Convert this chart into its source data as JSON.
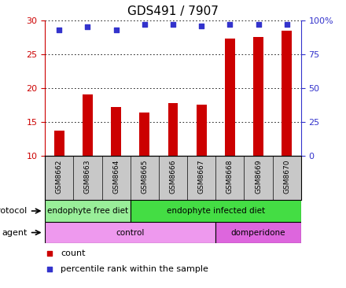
{
  "title": "GDS491 / 7907",
  "samples": [
    "GSM8662",
    "GSM8663",
    "GSM8664",
    "GSM8665",
    "GSM8666",
    "GSM8667",
    "GSM8668",
    "GSM8669",
    "GSM8670"
  ],
  "counts": [
    13.7,
    19.0,
    17.2,
    16.4,
    17.7,
    17.5,
    27.3,
    27.5,
    28.5
  ],
  "percentiles": [
    93,
    95,
    93,
    97,
    97,
    96,
    97,
    97,
    97
  ],
  "ylim_left": [
    10,
    30
  ],
  "ylim_right": [
    0,
    100
  ],
  "yticks_left": [
    10,
    15,
    20,
    25,
    30
  ],
  "yticks_right": [
    0,
    25,
    50,
    75,
    100
  ],
  "ytick_right_labels": [
    "0",
    "25",
    "50",
    "75",
    "100%"
  ],
  "bar_color": "#cc0000",
  "dot_color": "#3333cc",
  "bar_bottom": 10,
  "protocol_groups": [
    {
      "label": "endophyte free diet",
      "start": 0,
      "end": 3,
      "color": "#99ee99"
    },
    {
      "label": "endophyte infected diet",
      "start": 3,
      "end": 9,
      "color": "#44dd44"
    }
  ],
  "agent_groups": [
    {
      "label": "control",
      "start": 0,
      "end": 6,
      "color": "#ee99ee"
    },
    {
      "label": "domperidone",
      "start": 6,
      "end": 9,
      "color": "#dd66dd"
    }
  ],
  "protocol_label": "protocol",
  "agent_label": "agent",
  "legend_count_label": "count",
  "legend_percentile_label": "percentile rank within the sample",
  "background_color": "#ffffff",
  "sample_bg_color": "#c8c8c8",
  "title_fontsize": 11,
  "tick_fontsize": 8,
  "legend_fontsize": 8,
  "bar_width": 0.35
}
